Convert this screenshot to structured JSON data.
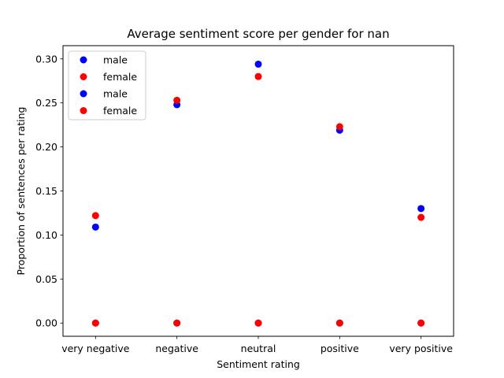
{
  "chart_data": {
    "type": "scatter",
    "title": "Average sentiment score per gender for nan",
    "xlabel": "Sentiment rating",
    "ylabel": "Proportion of sentences per rating",
    "categories": [
      "very negative",
      "negative",
      "neutral",
      "positive",
      "very positive"
    ],
    "ylim": [
      -0.015,
      0.315
    ],
    "yticks": [
      0.0,
      0.05,
      0.1,
      0.15,
      0.2,
      0.25,
      0.3
    ],
    "ytick_labels": [
      "0.00",
      "0.05",
      "0.10",
      "0.15",
      "0.20",
      "0.25",
      "0.30"
    ],
    "grid": false,
    "legend_position": "top-left",
    "series": [
      {
        "name": "male",
        "color": "#0000ff",
        "values": [
          0.0,
          0.0,
          0.0,
          0.0,
          0.0
        ]
      },
      {
        "name": "female",
        "color": "#ff0000",
        "values": [
          0.0,
          0.0,
          0.0,
          0.0,
          0.0
        ]
      },
      {
        "name": "male",
        "color": "#0000ff",
        "values": [
          0.109,
          0.248,
          0.294,
          0.219,
          0.13
        ]
      },
      {
        "name": "female",
        "color": "#ff0000",
        "values": [
          0.122,
          0.253,
          0.28,
          0.223,
          0.12
        ]
      }
    ]
  }
}
